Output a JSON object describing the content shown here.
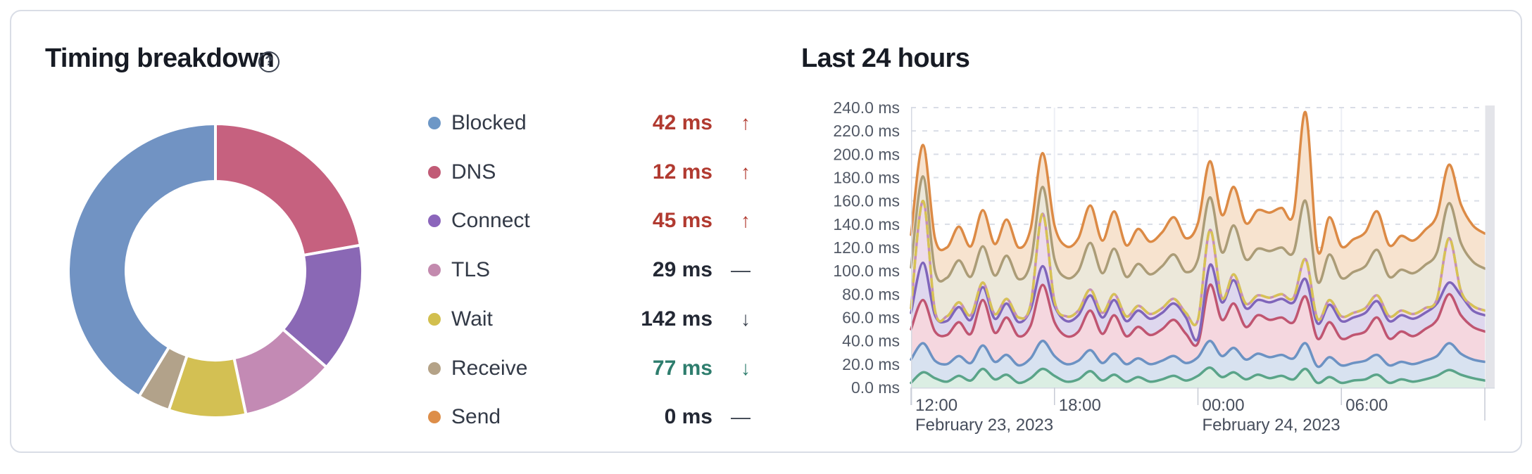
{
  "card": {
    "left_title": "Timing breakdown",
    "help_icon": "?",
    "right_title": "Last 24 hours"
  },
  "legend": {
    "items": [
      {
        "phase": "Blocked",
        "value": "42 ms",
        "trend_arrow": "↑",
        "trend": "up",
        "tone": "bad",
        "color": "#6d97c6"
      },
      {
        "phase": "DNS",
        "value": "12 ms",
        "trend_arrow": "↑",
        "trend": "up",
        "tone": "bad",
        "color": "#c15b76"
      },
      {
        "phase": "Connect",
        "value": "45 ms",
        "trend_arrow": "↑",
        "trend": "up",
        "tone": "bad",
        "color": "#8b65bb"
      },
      {
        "phase": "TLS",
        "value": "29 ms",
        "trend_arrow": "—",
        "trend": "flat",
        "tone": "neutral",
        "color": "#c38aae"
      },
      {
        "phase": "Wait",
        "value": "142 ms",
        "trend_arrow": "↓",
        "trend": "down",
        "tone": "neutral",
        "color": "#d2bf4e"
      },
      {
        "phase": "Receive",
        "value": "77 ms",
        "trend_arrow": "↓",
        "trend": "down",
        "tone": "good",
        "color": "#b4a287"
      },
      {
        "phase": "Send",
        "value": "0 ms",
        "trend_arrow": "—",
        "trend": "flat",
        "tone": "neutral",
        "color": "#dd8e49"
      }
    ]
  },
  "chart_data": [
    {
      "type": "pie",
      "variant": "donut",
      "title": "Timing breakdown",
      "note": "segments read clockwise from 12 o'clock; shares measured from arc angles",
      "segments": [
        {
          "phase_by_color": "DNS",
          "color": "#c6617f",
          "start_deg": 0,
          "end_deg": 80,
          "percent": 22.2
        },
        {
          "phase_by_color": "Connect",
          "color": "#8a68b5",
          "start_deg": 80,
          "end_deg": 131,
          "percent": 14.2
        },
        {
          "phase_by_color": "TLS",
          "color": "#c38ab4",
          "start_deg": 131,
          "end_deg": 168,
          "percent": 10.3
        },
        {
          "phase_by_color": "Wait",
          "color": "#d3c053",
          "start_deg": 168,
          "end_deg": 198.5,
          "percent": 8.5
        },
        {
          "phase_by_color": "Receive",
          "color": "#b2a28a",
          "start_deg": 198.5,
          "end_deg": 211.3,
          "percent": 3.6
        },
        {
          "phase_by_color": "Blocked",
          "color": "#7193c3",
          "start_deg": 211.3,
          "end_deg": 360,
          "percent": 41.2
        }
      ]
    },
    {
      "type": "area",
      "stacked": true,
      "title": "Last 24 hours",
      "ylim": [
        0,
        240
      ],
      "y_tick_step_ms": 20,
      "y_tick_labels": [
        "0.0 ms",
        "20.0 ms",
        "40.0 ms",
        "60.0 ms",
        "80.0 ms",
        "100.0 ms",
        "120.0 ms",
        "140.0 ms",
        "160.0 ms",
        "180.0 ms",
        "200.0 ms",
        "220.0 ms",
        "240.0 ms"
      ],
      "x_hours_span": 24,
      "x_sample_step_hours": 0.5,
      "x_ticks": [
        {
          "hour": 0,
          "time": "12:00",
          "date": "February 23, 2023"
        },
        {
          "hour": 6,
          "time": "18:00",
          "date": ""
        },
        {
          "hour": 12,
          "time": "00:00",
          "date": "February 24, 2023"
        },
        {
          "hour": 18,
          "time": "06:00",
          "date": ""
        },
        {
          "hour": 24,
          "time": "",
          "date": ""
        }
      ],
      "grid": {
        "horizontal": "dashed",
        "dash_color": "#d9dde6",
        "vertical_color": "#edeff5",
        "axis_color": "#d5d9e2",
        "tick_color": "#c7cbd5"
      },
      "now_marker": {
        "color": "#e3e4e9",
        "position": "right-edge"
      },
      "wait_overlay": {
        "label": "Wait",
        "color": "#d7c254",
        "style": "dashed",
        "follows": "tls"
      },
      "series": [
        {
          "key": "baseline",
          "label": "(unlabeled teal series)",
          "line_color": "#5aa489",
          "fill": "#dbeee3",
          "cumulative_ms": [
            4,
            13,
            8,
            5,
            10,
            6,
            16,
            7,
            11,
            4,
            8,
            16,
            10,
            5,
            7,
            14,
            6,
            11,
            5,
            9,
            5,
            7,
            10,
            6,
            10,
            17,
            9,
            13,
            7,
            11,
            8,
            10,
            7,
            16,
            4,
            9,
            4,
            6,
            7,
            11,
            4,
            7,
            5,
            7,
            10,
            15,
            11,
            8,
            6
          ]
        },
        {
          "key": "blocked",
          "label": "Blocked",
          "line_color": "#6c92c3",
          "fill": "#d8e2f0",
          "cumulative_ms": [
            24,
            38,
            23,
            20,
            27,
            21,
            36,
            22,
            28,
            19,
            25,
            40,
            27,
            20,
            23,
            32,
            21,
            29,
            20,
            25,
            20,
            23,
            27,
            21,
            26,
            40,
            27,
            34,
            24,
            29,
            26,
            28,
            25,
            38,
            18,
            26,
            19,
            21,
            23,
            28,
            19,
            22,
            20,
            23,
            27,
            38,
            29,
            24,
            22
          ]
        },
        {
          "key": "dns",
          "label": "DNS",
          "line_color": "#c05571",
          "fill": "#f5d7df",
          "cumulative_ms": [
            50,
            75,
            48,
            45,
            56,
            46,
            75,
            47,
            60,
            44,
            53,
            88,
            56,
            44,
            48,
            66,
            46,
            62,
            44,
            52,
            45,
            50,
            58,
            46,
            38,
            88,
            58,
            72,
            52,
            62,
            58,
            60,
            56,
            78,
            42,
            56,
            42,
            45,
            48,
            60,
            42,
            48,
            44,
            50,
            58,
            80,
            62,
            52,
            48
          ]
        },
        {
          "key": "connect",
          "label": "Connect",
          "line_color": "#7f65ba",
          "fill": "#ded7ee",
          "cumulative_ms": [
            64,
            107,
            62,
            57,
            69,
            58,
            86,
            59,
            72,
            56,
            67,
            104,
            70,
            57,
            62,
            79,
            60,
            75,
            57,
            66,
            59,
            64,
            72,
            60,
            42,
            105,
            73,
            92,
            68,
            75,
            73,
            76,
            73,
            93,
            55,
            71,
            57,
            60,
            64,
            74,
            57,
            62,
            59,
            64,
            72,
            90,
            79,
            66,
            62
          ]
        },
        {
          "key": "tls",
          "label": "TLS (Wait dashed line coincident)",
          "line_color": "#c68fb5",
          "fill": "#eeddea",
          "cumulative_ms": [
            68,
            160,
            66,
            61,
            73,
            62,
            90,
            63,
            76,
            60,
            71,
            149,
            74,
            61,
            66,
            84,
            64,
            80,
            61,
            70,
            63,
            68,
            76,
            64,
            58,
            135,
            77,
            97,
            72,
            79,
            77,
            80,
            77,
            110,
            59,
            75,
            61,
            64,
            68,
            79,
            61,
            66,
            63,
            68,
            76,
            128,
            83,
            70,
            66
          ]
        },
        {
          "key": "receive",
          "label": "Receive",
          "line_color": "#ab9c77",
          "fill": "#ece8da",
          "cumulative_ms": [
            103,
            181,
            100,
            94,
            109,
            95,
            121,
            96,
            113,
            93,
            107,
            172,
            110,
            94,
            100,
            124,
            98,
            119,
            95,
            106,
            97,
            104,
            114,
            99,
            110,
            163,
            116,
            139,
            110,
            119,
            117,
            120,
            116,
            160,
            91,
            114,
            94,
            99,
            104,
            118,
            95,
            101,
            98,
            105,
            116,
            158,
            124,
            108,
            102
          ]
        },
        {
          "key": "send",
          "label": "Send",
          "line_color": "#dc8a45",
          "fill": "#f7e3cf",
          "cumulative_ms": [
            131,
            208,
            128,
            120,
            138,
            121,
            152,
            123,
            144,
            120,
            136,
            201,
            139,
            121,
            128,
            156,
            126,
            151,
            122,
            136,
            125,
            133,
            146,
            128,
            141,
            194,
            148,
            172,
            141,
            152,
            150,
            154,
            149,
            236,
            118,
            146,
            121,
            127,
            133,
            151,
            122,
            130,
            126,
            135,
            148,
            191,
            157,
            139,
            132
          ]
        }
      ]
    }
  ]
}
